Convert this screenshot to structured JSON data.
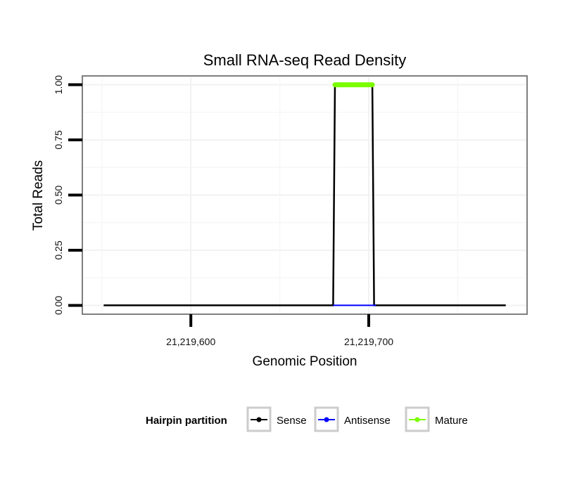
{
  "chart_data": {
    "type": "line",
    "title": "Small RNA-seq Read Density",
    "xlabel": "Genomic Position",
    "ylabel": "Total Reads",
    "xlim": [
      21219539,
      21219789
    ],
    "ylim": [
      -0.04,
      1.04
    ],
    "x_ticks": [
      21219600,
      21219700
    ],
    "x_tick_labels": [
      "21,219,600",
      "21,219,700"
    ],
    "y_ticks": [
      0,
      0.25,
      0.5,
      0.75,
      1.0
    ],
    "y_tick_labels": [
      "0.00",
      "0.25",
      "0.50",
      "0.75",
      "1.00"
    ],
    "grid": true,
    "legend_position": "bottom",
    "legend_title": "Hairpin partition",
    "series": [
      {
        "name": "Sense",
        "color": "#000000",
        "x": [
          21219551,
          21219680,
          21219681,
          21219702,
          21219703,
          21219777
        ],
        "values": [
          0,
          0,
          1,
          1,
          0,
          0
        ]
      },
      {
        "name": "Antisense",
        "color": "#0000ff",
        "x": [
          21219680,
          21219704
        ],
        "values": [
          0,
          0
        ]
      },
      {
        "name": "Mature",
        "color": "#7cfc00",
        "x": [
          21219681,
          21219702
        ],
        "values": [
          1,
          1
        ]
      }
    ]
  }
}
